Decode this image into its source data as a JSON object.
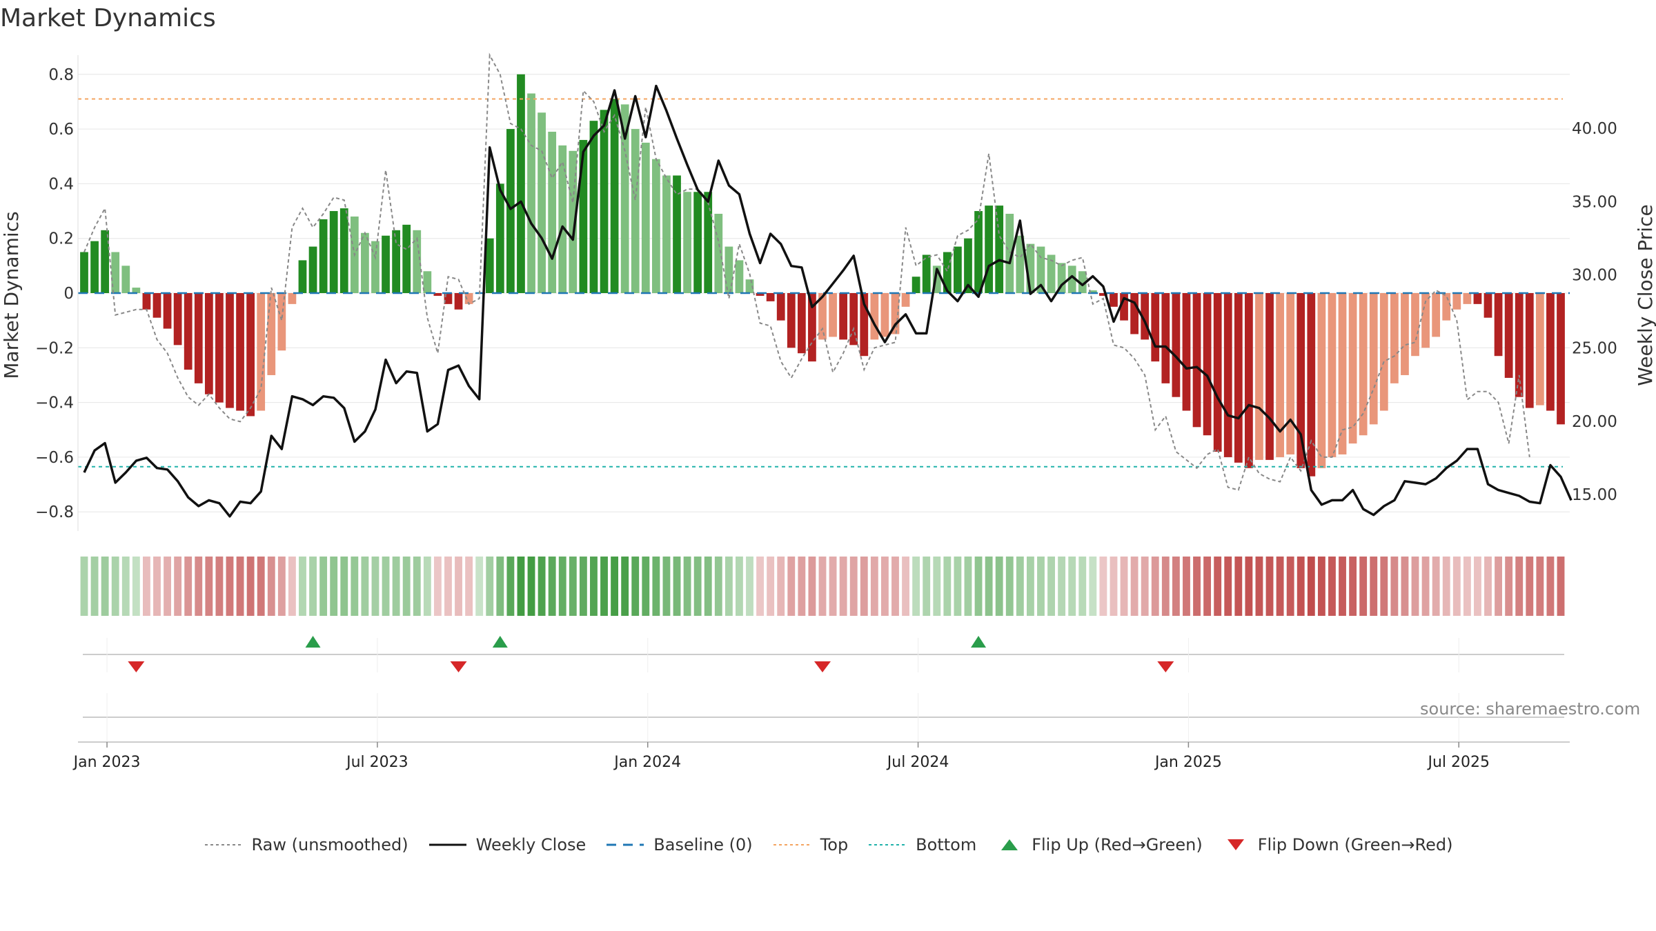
{
  "chart_data": {
    "type": "bar",
    "title": "Market Dynamics",
    "ylabel_left": "Market Dynamics",
    "ylabel_right": "Weekly Close Price",
    "left_ylim": [
      -0.87,
      0.87
    ],
    "right_ylim": [
      12.5,
      45.0
    ],
    "left_ticks": [
      -0.8,
      -0.6,
      -0.4,
      -0.2,
      0,
      0.2,
      0.4,
      0.6,
      0.8
    ],
    "left_tick_labels": [
      "−0.8",
      "−0.6",
      "−0.4",
      "−0.2",
      "0",
      "0.2",
      "0.4",
      "0.6",
      "0.8"
    ],
    "right_ticks": [
      15,
      20,
      25,
      30,
      35,
      40
    ],
    "right_tick_labels": [
      "15.00",
      "20.00",
      "25.00",
      "30.00",
      "35.00",
      "40.00"
    ],
    "x_tick_labels": [
      "Jan 2023",
      "Jul 2023",
      "Jan 2024",
      "Jul 2024",
      "Jan 2025",
      "Jul 2025"
    ],
    "x_tick_weeks": [
      1.5,
      27.5,
      53.5,
      79.5,
      105.5,
      131.5
    ],
    "baseline": 0,
    "top_level": 0.71,
    "bottom_level": -0.635,
    "market_dynamics": [
      0.15,
      0.19,
      0.23,
      0.15,
      0.1,
      0.02,
      -0.06,
      -0.09,
      -0.13,
      -0.19,
      -0.28,
      -0.33,
      -0.37,
      -0.4,
      -0.42,
      -0.43,
      -0.45,
      -0.43,
      -0.3,
      -0.21,
      -0.04,
      0.12,
      0.17,
      0.27,
      0.3,
      0.31,
      0.28,
      0.22,
      0.19,
      0.21,
      0.23,
      0.25,
      0.23,
      0.08,
      -0.01,
      -0.04,
      -0.06,
      -0.04,
      0.0,
      0.2,
      0.4,
      0.6,
      0.8,
      0.73,
      0.66,
      0.59,
      0.54,
      0.52,
      0.56,
      0.63,
      0.67,
      0.71,
      0.69,
      0.6,
      0.55,
      0.49,
      0.43,
      0.43,
      0.37,
      0.37,
      0.37,
      0.29,
      0.17,
      0.12,
      0.05,
      -0.01,
      -0.03,
      -0.1,
      -0.2,
      -0.22,
      -0.25,
      -0.17,
      -0.16,
      -0.17,
      -0.19,
      -0.23,
      -0.17,
      -0.16,
      -0.15,
      -0.05,
      0.06,
      0.14,
      0.1,
      0.15,
      0.17,
      0.2,
      0.3,
      0.32,
      0.32,
      0.29,
      0.21,
      0.18,
      0.17,
      0.14,
      0.11,
      0.1,
      0.08,
      0.01,
      -0.01,
      -0.05,
      -0.1,
      -0.15,
      -0.17,
      -0.25,
      -0.33,
      -0.38,
      -0.43,
      -0.49,
      -0.52,
      -0.58,
      -0.6,
      -0.62,
      -0.64,
      -0.61,
      -0.61,
      -0.6,
      -0.59,
      -0.64,
      -0.67,
      -0.64,
      -0.6,
      -0.59,
      -0.55,
      -0.52,
      -0.48,
      -0.43,
      -0.33,
      -0.3,
      -0.23,
      -0.2,
      -0.16,
      -0.1,
      -0.06,
      -0.04,
      -0.04,
      -0.09,
      -0.23,
      -0.31,
      -0.38,
      -0.42,
      -0.41,
      -0.43,
      -0.48
    ],
    "raw_unsmoothed": [
      0.15,
      0.24,
      0.31,
      -0.08,
      -0.07,
      -0.06,
      -0.06,
      -0.17,
      -0.22,
      -0.31,
      -0.38,
      -0.41,
      -0.37,
      -0.42,
      -0.46,
      -0.47,
      -0.42,
      -0.35,
      0.02,
      -0.1,
      0.24,
      0.31,
      0.24,
      0.29,
      0.35,
      0.34,
      0.14,
      0.22,
      0.13,
      0.45,
      0.18,
      0.16,
      0.2,
      -0.09,
      -0.22,
      0.06,
      0.05,
      -0.04,
      -0.02,
      0.87,
      0.8,
      0.62,
      0.6,
      0.54,
      0.52,
      0.42,
      0.48,
      0.33,
      0.74,
      0.7,
      0.59,
      0.65,
      0.52,
      0.34,
      0.68,
      0.49,
      0.42,
      0.36,
      0.38,
      0.38,
      0.33,
      0.19,
      -0.02,
      0.18,
      0.07,
      -0.11,
      -0.12,
      -0.25,
      -0.31,
      -0.24,
      -0.18,
      -0.13,
      -0.29,
      -0.22,
      -0.13,
      -0.28,
      -0.2,
      -0.19,
      -0.18,
      0.24,
      0.1,
      0.13,
      0.14,
      0.08,
      0.21,
      0.23,
      0.27,
      0.51,
      0.21,
      0.15,
      0.13,
      0.18,
      0.13,
      0.12,
      0.1,
      0.12,
      0.13,
      -0.04,
      -0.02,
      -0.19,
      -0.2,
      -0.24,
      -0.3,
      -0.5,
      -0.45,
      -0.58,
      -0.61,
      -0.64,
      -0.59,
      -0.57,
      -0.71,
      -0.72,
      -0.6,
      -0.66,
      -0.68,
      -0.69,
      -0.6,
      -0.65,
      -0.54,
      -0.6,
      -0.6,
      -0.5,
      -0.49,
      -0.44,
      -0.35,
      -0.25,
      -0.23,
      -0.19,
      -0.18,
      -0.03,
      0.01,
      -0.01,
      -0.1,
      -0.39,
      -0.36,
      -0.36,
      -0.4,
      -0.55,
      -0.3,
      -0.6
    ],
    "weekly_close": [
      16.5,
      18,
      18.5,
      15.8,
      16.5,
      17.3,
      17.5,
      16.8,
      16.7,
      15.9,
      14.8,
      14.2,
      14.6,
      14.4,
      13.5,
      14.5,
      14.4,
      15.2,
      19.0,
      18.1,
      21.7,
      21.5,
      21.1,
      21.7,
      21.6,
      20.9,
      18.6,
      19.3,
      20.8,
      24.2,
      22.6,
      23.4,
      23.3,
      19.3,
      19.8,
      23.5,
      23.8,
      22.4,
      21.5,
      38.7,
      35.8,
      34.5,
      35.0,
      33.5,
      32.5,
      31.1,
      33.3,
      32.4,
      38.4,
      39.5,
      40.2,
      42.6,
      39.3,
      42.2,
      39.4,
      42.9,
      41.2,
      39.3,
      37.5,
      35.8,
      35.0,
      37.8,
      36.1,
      35.5,
      32.8,
      30.8,
      32.8,
      32.1,
      30.6,
      30.5,
      27.8,
      28.5,
      29.4,
      30.3,
      31.3,
      28.0,
      26.6,
      25.4,
      26.6,
      27.3,
      26.0,
      26.0,
      30.4,
      28.9,
      28.2,
      29.3,
      28.5,
      30.6,
      31.0,
      30.8,
      33.7,
      28.7,
      29.3,
      28.2,
      29.3,
      29.9,
      29.3,
      29.9,
      29.2,
      26.8,
      28.4,
      28.1,
      26.8,
      25.1,
      25.1,
      24.4,
      23.6,
      23.7,
      23.1,
      21.6,
      20.4,
      20.2,
      21.1,
      20.9,
      20.2,
      19.3,
      20.1,
      19.1,
      15.3,
      14.3,
      14.6,
      14.6,
      15.3,
      14.0,
      13.6,
      14.2,
      14.6,
      15.9,
      15.8,
      15.7,
      16.1,
      16.8,
      17.3,
      18.1,
      18.1,
      15.7,
      15.3,
      15.1,
      14.9,
      14.5,
      14.4,
      17.0,
      16.2,
      14.6
    ],
    "flip_up_weeks": [
      22,
      40,
      86
    ],
    "flip_down_weeks": [
      5,
      36,
      71,
      104
    ],
    "legend": [
      {
        "label": "Raw (unsmoothed)",
        "color": "#888888",
        "style": "dotted-line"
      },
      {
        "label": "Weekly Close",
        "color": "#111111",
        "style": "solid-line"
      },
      {
        "label": "Baseline (0)",
        "color": "#1f77b4",
        "style": "dashed-line"
      },
      {
        "label": "Top",
        "color": "#f4a460",
        "style": "dotted-line"
      },
      {
        "label": "Bottom",
        "color": "#20b2aa",
        "style": "dotted-line"
      },
      {
        "label": "Flip Up (Red→Green)",
        "color": "#2a9d4b",
        "style": "triangle-up"
      },
      {
        "label": "Flip Down (Green→Red)",
        "color": "#d62728",
        "style": "triangle-down"
      }
    ],
    "source": "source: sharemaestro.com",
    "colors": {
      "strong_green": "#228b22",
      "light_green": "#7fbf7f",
      "strong_red": "#b22222",
      "light_red": "#e9967a",
      "baseline": "#1f77b4",
      "top": "#f4a460",
      "bottom": "#20b2aa",
      "raw": "#888888",
      "close": "#111111",
      "flip_up": "#2a9d4b",
      "flip_down": "#d62728"
    }
  }
}
